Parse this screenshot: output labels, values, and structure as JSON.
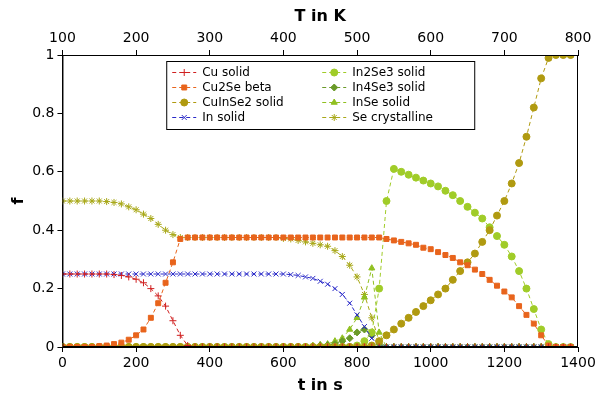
{
  "chart_data": {
    "type": "line",
    "x_label": "t in s",
    "x2_label": "T in K",
    "y_label": "f",
    "xlim": [
      0,
      1400
    ],
    "xticks": [
      0,
      200,
      400,
      600,
      800,
      1000,
      1200,
      1400
    ],
    "x2lim": [
      100,
      800
    ],
    "x2ticks": [
      100,
      200,
      300,
      400,
      500,
      600,
      700,
      800
    ],
    "ylim": [
      0,
      1
    ],
    "yticks": [
      0,
      0.2,
      0.4,
      0.6,
      0.8,
      1
    ],
    "grid": false,
    "legend": "upper center",
    "x": [
      0,
      20,
      40,
      60,
      80,
      100,
      120,
      140,
      160,
      180,
      200,
      220,
      240,
      260,
      280,
      300,
      320,
      340,
      360,
      380,
      400,
      420,
      440,
      460,
      480,
      500,
      520,
      540,
      560,
      580,
      600,
      620,
      640,
      660,
      680,
      700,
      720,
      740,
      760,
      780,
      800,
      820,
      840,
      860,
      880,
      900,
      920,
      940,
      960,
      980,
      1000,
      1020,
      1040,
      1060,
      1080,
      1100,
      1120,
      1140,
      1160,
      1180,
      1200,
      1220,
      1240,
      1260,
      1280,
      1300,
      1320,
      1340,
      1360,
      1380
    ],
    "series": [
      {
        "name": "Cu solid",
        "color": "#d02020",
        "marker": "plus",
        "line_style": "dashed",
        "values": [
          0.25,
          0.25,
          0.25,
          0.25,
          0.25,
          0.25,
          0.25,
          0.248,
          0.245,
          0.24,
          0.232,
          0.22,
          0.2,
          0.175,
          0.14,
          0.09,
          0.04,
          0.005,
          0,
          0,
          0,
          0,
          0,
          0,
          0,
          0,
          0,
          0,
          0,
          0,
          0,
          0,
          0,
          0,
          0,
          0,
          0,
          0,
          0,
          0,
          0,
          0,
          0,
          0,
          0,
          0,
          0,
          0,
          0,
          0,
          0,
          0,
          0,
          0,
          0,
          0,
          0,
          0,
          0,
          0,
          0,
          0,
          0,
          0,
          0,
          0,
          0,
          0,
          0,
          0
        ]
      },
      {
        "name": "Cu2Se beta",
        "color": "#e8641c",
        "marker": "square",
        "line_style": "dashed",
        "values": [
          0,
          0,
          0,
          0,
          0,
          0.003,
          0.005,
          0.01,
          0.015,
          0.025,
          0.04,
          0.06,
          0.1,
          0.15,
          0.22,
          0.29,
          0.37,
          0.375,
          0.375,
          0.375,
          0.375,
          0.375,
          0.375,
          0.375,
          0.375,
          0.375,
          0.375,
          0.375,
          0.375,
          0.375,
          0.375,
          0.375,
          0.375,
          0.375,
          0.375,
          0.375,
          0.375,
          0.375,
          0.375,
          0.375,
          0.375,
          0.375,
          0.375,
          0.375,
          0.37,
          0.365,
          0.36,
          0.355,
          0.35,
          0.34,
          0.335,
          0.325,
          0.315,
          0.305,
          0.29,
          0.28,
          0.265,
          0.25,
          0.23,
          0.21,
          0.19,
          0.17,
          0.14,
          0.11,
          0.08,
          0.04,
          0.005,
          0,
          0,
          0
        ]
      },
      {
        "name": "CuInSe2 solid",
        "color": "#b09a10",
        "marker": "circle",
        "line_style": "dashed",
        "values": [
          0,
          0,
          0,
          0,
          0,
          0,
          0,
          0,
          0,
          0,
          0,
          0,
          0,
          0,
          0,
          0,
          0,
          0,
          0,
          0,
          0,
          0,
          0,
          0,
          0,
          0,
          0,
          0,
          0,
          0,
          0,
          0,
          0,
          0,
          0,
          0,
          0,
          0,
          0,
          0,
          0,
          0,
          0.005,
          0.02,
          0.04,
          0.06,
          0.08,
          0.1,
          0.12,
          0.14,
          0.16,
          0.18,
          0.2,
          0.23,
          0.26,
          0.29,
          0.32,
          0.36,
          0.4,
          0.45,
          0.5,
          0.56,
          0.63,
          0.72,
          0.82,
          0.92,
          0.99,
          1,
          1,
          1
        ]
      },
      {
        "name": "In solid",
        "color": "#2828c8",
        "marker": "x",
        "line_style": "dashed",
        "values": [
          0.25,
          0.25,
          0.25,
          0.25,
          0.25,
          0.25,
          0.25,
          0.25,
          0.25,
          0.25,
          0.25,
          0.25,
          0.25,
          0.25,
          0.25,
          0.25,
          0.25,
          0.25,
          0.25,
          0.25,
          0.25,
          0.25,
          0.25,
          0.25,
          0.25,
          0.25,
          0.25,
          0.25,
          0.25,
          0.25,
          0.25,
          0.248,
          0.245,
          0.24,
          0.235,
          0.225,
          0.215,
          0.2,
          0.18,
          0.15,
          0.11,
          0.07,
          0.03,
          0.005,
          0,
          0,
          0,
          0,
          0,
          0,
          0,
          0,
          0,
          0,
          0,
          0,
          0,
          0,
          0,
          0,
          0,
          0,
          0,
          0,
          0,
          0,
          0,
          0,
          0,
          0
        ]
      },
      {
        "name": "In2Se3 solid",
        "color": "#a0cc28",
        "marker": "circle",
        "line_style": "dashed",
        "values": [
          0,
          0,
          0,
          0,
          0,
          0,
          0,
          0,
          0,
          0,
          0,
          0,
          0,
          0,
          0,
          0,
          0,
          0,
          0,
          0,
          0,
          0,
          0,
          0,
          0,
          0,
          0,
          0,
          0,
          0,
          0,
          0,
          0,
          0,
          0,
          0,
          0,
          0,
          0,
          0,
          0.005,
          0.02,
          0.05,
          0.2,
          0.5,
          0.61,
          0.6,
          0.59,
          0.58,
          0.57,
          0.56,
          0.55,
          0.535,
          0.52,
          0.5,
          0.48,
          0.46,
          0.44,
          0.41,
          0.38,
          0.35,
          0.31,
          0.26,
          0.2,
          0.13,
          0.06,
          0.01,
          0,
          0,
          0
        ]
      },
      {
        "name": "In4Se3 solid",
        "color": "#6a9a28",
        "marker": "diamond",
        "line_style": "dashed",
        "values": [
          0,
          0,
          0,
          0,
          0,
          0,
          0,
          0,
          0,
          0,
          0,
          0,
          0,
          0,
          0,
          0,
          0,
          0,
          0,
          0,
          0,
          0,
          0,
          0,
          0,
          0,
          0,
          0,
          0,
          0,
          0,
          0,
          0,
          0,
          0,
          0.005,
          0.007,
          0.01,
          0.02,
          0.03,
          0.05,
          0.06,
          0.04,
          0.01,
          0,
          0,
          0,
          0,
          0,
          0,
          0,
          0,
          0,
          0,
          0,
          0,
          0,
          0,
          0,
          0,
          0,
          0,
          0,
          0,
          0,
          0,
          0,
          0,
          0,
          0
        ]
      },
      {
        "name": "InSe solid",
        "color": "#90c020",
        "marker": "triangle",
        "line_style": "dashed",
        "values": [
          0,
          0,
          0,
          0,
          0,
          0,
          0,
          0,
          0,
          0,
          0,
          0,
          0,
          0,
          0,
          0,
          0,
          0,
          0,
          0,
          0,
          0,
          0,
          0,
          0,
          0,
          0,
          0,
          0,
          0,
          0,
          0,
          0,
          0,
          0.005,
          0.008,
          0.01,
          0.02,
          0.03,
          0.06,
          0.1,
          0.17,
          0.27,
          0.05,
          0,
          0,
          0,
          0,
          0,
          0,
          0,
          0,
          0,
          0,
          0,
          0,
          0,
          0,
          0,
          0,
          0,
          0,
          0,
          0,
          0,
          0,
          0,
          0,
          0,
          0
        ]
      },
      {
        "name": "Se crystalline",
        "color": "#a8a818",
        "marker": "asterisk",
        "line_style": "dashed",
        "values": [
          0.5,
          0.5,
          0.5,
          0.5,
          0.5,
          0.5,
          0.498,
          0.495,
          0.49,
          0.48,
          0.47,
          0.455,
          0.44,
          0.42,
          0.4,
          0.385,
          0.375,
          0.375,
          0.375,
          0.375,
          0.375,
          0.375,
          0.375,
          0.375,
          0.375,
          0.375,
          0.375,
          0.375,
          0.375,
          0.375,
          0.372,
          0.37,
          0.365,
          0.36,
          0.355,
          0.35,
          0.345,
          0.33,
          0.31,
          0.28,
          0.24,
          0.18,
          0.1,
          0.02,
          0,
          0,
          0,
          0,
          0,
          0,
          0,
          0,
          0,
          0,
          0,
          0,
          0,
          0,
          0,
          0,
          0,
          0,
          0,
          0,
          0,
          0,
          0,
          0,
          0,
          0
        ]
      }
    ]
  }
}
